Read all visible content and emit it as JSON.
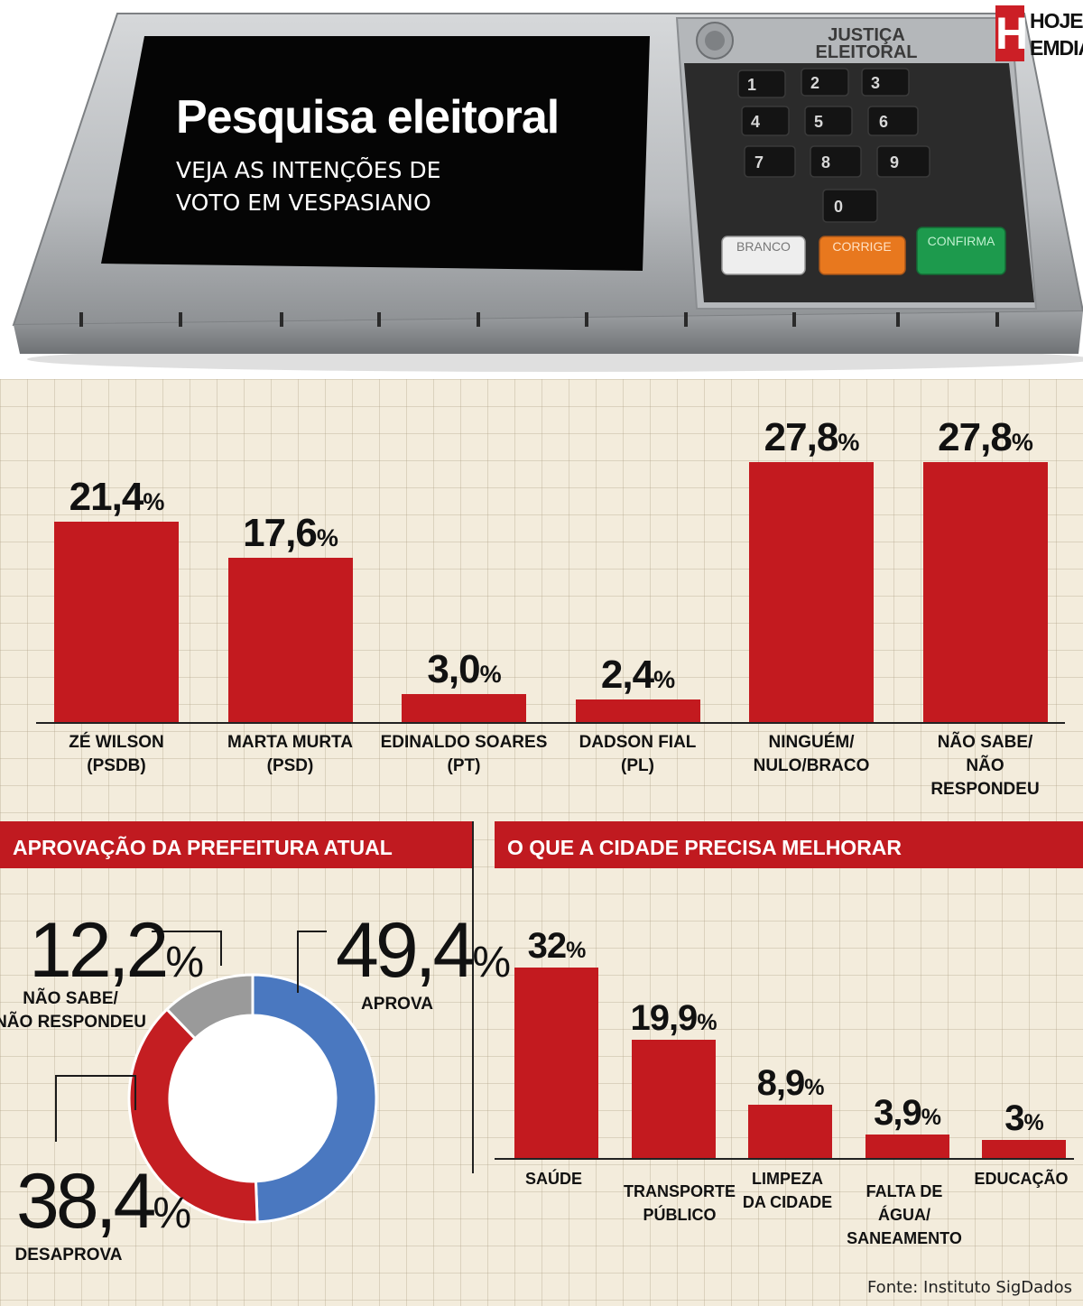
{
  "header": {
    "title": "Pesquisa eleitoral",
    "subtitle_line1": "VEJA AS INTENÇÕES DE",
    "subtitle_line2": "VOTO EM VESPASIANO",
    "urn_label_line1": "JUSTIÇA",
    "urn_label_line2": "ELEITORAL",
    "keys": [
      "1",
      "2",
      "3",
      "4",
      "5",
      "6",
      "7",
      "8",
      "9",
      "0"
    ],
    "button_branco": "BRANCO",
    "button_corrige": "CORRIGE",
    "button_confirma": "CONFIRMA"
  },
  "brand": {
    "letter": "H",
    "line1": "HOJE",
    "line2": "EMDIA"
  },
  "colors": {
    "bar": "#c31a1f",
    "header": "#c01a20",
    "aprova": "#4a78c0",
    "desaprova": "#c41e22",
    "nao_sabe": "#9a9a9a"
  },
  "chart_data": [
    {
      "type": "bar",
      "title": "",
      "categories": [
        "ZÉ WILSON\n(PSDB)",
        "MARTA MURTA\n(PSD)",
        "EDINALDO SOARES\n(PT)",
        "DADSON FIAL\n(PL)",
        "NINGUÉM/\nNULO/BRACO",
        "NÃO SABE/\nNÃO RESPONDEU"
      ],
      "values": [
        21.4,
        17.6,
        3.0,
        2.4,
        27.8,
        27.8
      ],
      "value_labels": [
        "21,4",
        "17,6",
        "3,0",
        "2,4",
        "27,8",
        "27,8"
      ],
      "unit": "%"
    },
    {
      "type": "pie",
      "title": "APROVAÇÃO DA PREFEITURA ATUAL",
      "slices": [
        {
          "label": "APROVA",
          "value": 49.4,
          "display": "49,4",
          "color": "#4a78c0"
        },
        {
          "label": "DESAPROVA",
          "value": 38.4,
          "display": "38,4",
          "color": "#c41e22"
        },
        {
          "label": "NÃO SABE/\nNÃO RESPONDEU",
          "value": 12.2,
          "display": "12,2",
          "color": "#9a9a9a"
        }
      ],
      "unit": "%"
    },
    {
      "type": "bar",
      "title": "O QUE A CIDADE PRECISA MELHORAR",
      "categories": [
        "SAÚDE",
        "TRANSPORTE\nPÚBLICO",
        "LIMPEZA\nDA CIDADE",
        "FALTA DE\nÁGUA/\nSANEAMENTO",
        "EDUCAÇÃO"
      ],
      "values": [
        32,
        19.9,
        8.9,
        3.9,
        3
      ],
      "value_labels": [
        "32",
        "19,9",
        "8,9",
        "3,9",
        "3"
      ],
      "unit": "%"
    }
  ],
  "source": "Fonte: Instituto SigDados"
}
